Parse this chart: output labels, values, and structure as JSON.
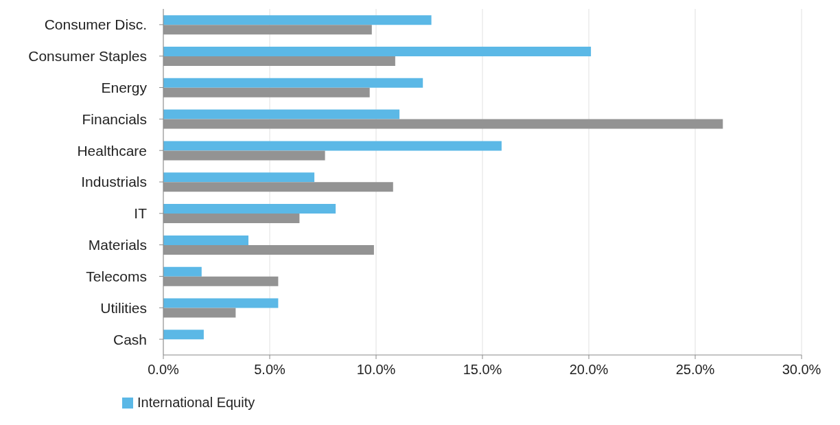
{
  "chart_data": {
    "type": "bar",
    "orientation": "horizontal",
    "categories": [
      "Consumer Disc.",
      "Consumer Staples",
      "Energy",
      "Financials",
      "Healthcare",
      "Industrials",
      "IT",
      "Materials",
      "Telecoms",
      "Utilities",
      "Cash"
    ],
    "series": [
      {
        "name": "International Equity",
        "color": "#5bb8e6",
        "values": [
          12.6,
          20.1,
          12.2,
          11.1,
          15.9,
          7.1,
          8.1,
          4.0,
          1.8,
          5.4,
          1.9
        ]
      },
      {
        "color": "#939393",
        "values": [
          9.8,
          10.9,
          9.7,
          26.3,
          7.6,
          10.8,
          6.4,
          9.9,
          5.4,
          3.4,
          null
        ]
      }
    ],
    "xlim": [
      0,
      30
    ],
    "xticks": [
      {
        "value": 0,
        "label": "0.0%"
      },
      {
        "value": 5,
        "label": "5.0%"
      },
      {
        "value": 10,
        "label": "10.0%"
      },
      {
        "value": 15,
        "label": "15.0%"
      },
      {
        "value": 20,
        "label": "20.0%"
      },
      {
        "value": 25,
        "label": "25.0%"
      },
      {
        "value": 30,
        "label": "30.0%"
      }
    ],
    "grid": "x",
    "legend": "bottom"
  }
}
